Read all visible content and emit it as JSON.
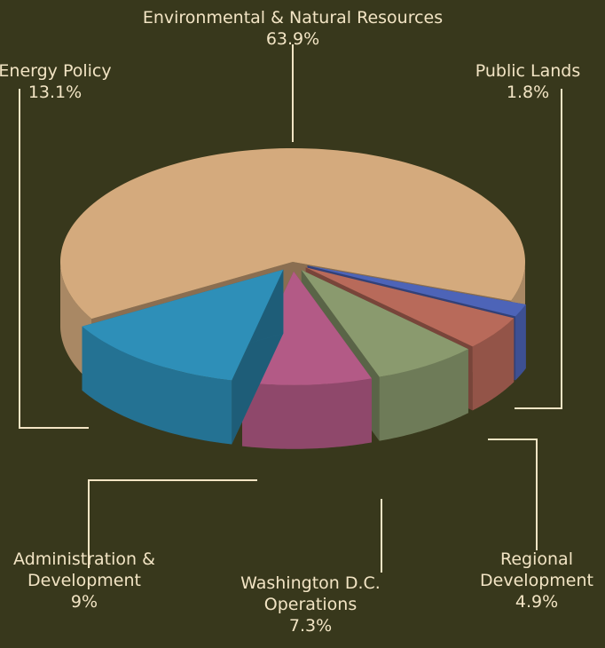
{
  "chart_data": {
    "type": "pie",
    "categories": [
      "Public Lands",
      "Regional Development",
      "Washington D.C. Operations",
      "Administration & Development",
      "Energy Policy",
      "Environmental & Natural Resources"
    ],
    "values": [
      1.8,
      4.9,
      7.3,
      9,
      13.1,
      63.9
    ],
    "value_labels": [
      "1.8%",
      "4.9%",
      "7.3%",
      "9%",
      "13.1%",
      "63.9%"
    ],
    "colors": [
      "#4d64b8",
      "#b86a5a",
      "#8a9a6e",
      "#b35a86",
      "#2e8fb8",
      "#d4aa7d"
    ]
  }
}
